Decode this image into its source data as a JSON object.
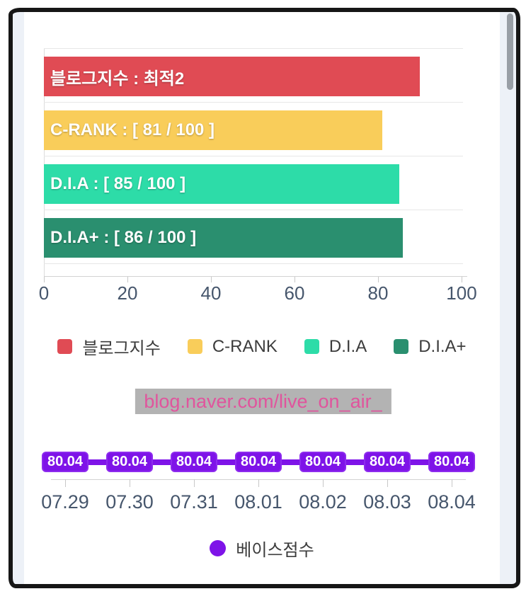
{
  "url_banner": {
    "text": "blog.naver.com/live_on_air_",
    "text_color": "#e0559d",
    "bg_color": "#b3b3b3"
  },
  "chart_data": [
    {
      "type": "bar",
      "orientation": "horizontal",
      "title": "",
      "xlabel": "",
      "ylabel": "",
      "xlim": [
        0,
        100
      ],
      "x_ticks": [
        0,
        20,
        40,
        60,
        80,
        100
      ],
      "grid": "category-separators",
      "bars": [
        {
          "name": "블로그지수",
          "label": "블로그지수 : 최적2",
          "value": 90,
          "color": "#e04b54"
        },
        {
          "name": "C-RANK",
          "label": "C-RANK : [ 81 / 100 ]",
          "value": 81,
          "color": "#f9cd5a"
        },
        {
          "name": "D.I.A",
          "label": "D.I.A : [ 85 / 100 ]",
          "value": 85,
          "color": "#2ddca8"
        },
        {
          "name": "D.I.A+",
          "label": "D.I.A+ : [ 86 / 100 ]",
          "value": 86,
          "color": "#2a8f6f"
        }
      ],
      "legend_position": "bottom",
      "legend": [
        {
          "label": "블로그지수",
          "color": "#e04b54"
        },
        {
          "label": "C-RANK",
          "color": "#f9cd5a"
        },
        {
          "label": "D.I.A",
          "color": "#2ddca8"
        },
        {
          "label": "D.I.A+",
          "color": "#2a8f6f"
        }
      ]
    },
    {
      "type": "line",
      "title": "",
      "x": [
        "07.29",
        "07.30",
        "07.31",
        "08.01",
        "08.02",
        "08.03",
        "08.04"
      ],
      "series": [
        {
          "name": "베이스점수",
          "values": [
            80.04,
            80.04,
            80.04,
            80.04,
            80.04,
            80.04,
            80.04
          ],
          "color": "#7e13e8"
        }
      ],
      "point_labels": [
        "80.04",
        "80.04",
        "80.04",
        "80.04",
        "80.04",
        "80.04",
        "80.04"
      ],
      "legend_position": "bottom",
      "legend": [
        {
          "label": "베이스점수",
          "color": "#7e13e8"
        }
      ]
    }
  ]
}
